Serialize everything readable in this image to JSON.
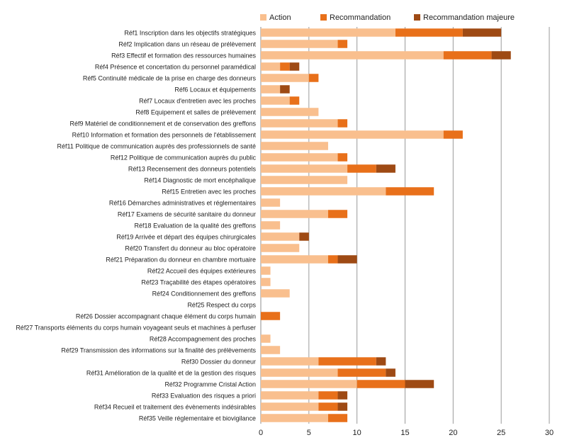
{
  "chart_data": {
    "type": "bar",
    "orientation": "horizontal",
    "stacked": true,
    "title": "",
    "xlabel": "",
    "ylabel": "",
    "xlim": [
      0,
      30
    ],
    "xticks": [
      0,
      5,
      10,
      15,
      20,
      25,
      30
    ],
    "grid": "vertical",
    "legend_position": "top",
    "categories": [
      "Réf1 Inscription dans les objectifs stratégiques",
      "Réf2 Implication dans un réseau de prélèvement",
      "Réf3 Effectif et formation des ressources humaines",
      "Réf4 Présence et concertation du personnel paramédical",
      "Réf5 Continuité médicale de la prise en charge des donneurs",
      "Réf6 Locaux et équipements",
      "Réf7 Locaux d'entretien avec les proches",
      "Réf8 Equipement et salles de prélèvement",
      "Réf9 Matériel de conditionnement et de conservation des greffons",
      "Réf10 Information et formation des personnels de l'établissement",
      "Réf11 Politique de communication auprès des professionnels de santé",
      "Réf12 Politique de communication auprès du public",
      "Réf13 Recensement des donneurs potentiels",
      "Réf14 Diagnostic de mort encéphalique",
      "Réf15 Entretien avec les proches",
      "Réf16 Démarches administratives et réglementaires",
      "Réf17 Examens de sécurité sanitaire du donneur",
      "Réf18 Evaluation de la qualité des greffons",
      "Réf19 Arrivée et départ des équipes chirurgicales",
      "Réf20 Transfert du donneur au bloc opératoire",
      "Réf21 Préparation du donneur en chambre mortuaire",
      "Réf22 Accueil des équipes extérieures",
      "Réf23 Traçabilité des étapes opératoires",
      "Réf24 Conditionnement des greffons",
      "Réf25 Respect du corps",
      "Réf26 Dossier accompagnant chaque élément du corps humain",
      "Réf27 Transports éléments du corps humain voyageant seuls et machines à perfuser",
      "Réf28 Accompagnement des proches",
      "Réf29 Transmission des informations sur la finalité des prélèvements",
      "Réf30 Dossier du donneur",
      "Réf31 Amélioration de la qualité et de la gestion des risques",
      "Réf32 Programme Cristal Action",
      "Réf33 Evaluation des risques a priori",
      "Réf34 Recueil et traitement des évènements indésirables",
      "Réf35 Veille réglementaire et biovigilance"
    ],
    "series": [
      {
        "name": "Action",
        "color": "#F9BF8E",
        "values": [
          14,
          8,
          19,
          2,
          5,
          2,
          3,
          6,
          8,
          19,
          7,
          8,
          9,
          9,
          13,
          2,
          7,
          2,
          4,
          4,
          7,
          1,
          1,
          3,
          0,
          0,
          0,
          1,
          2,
          6,
          8,
          10,
          6,
          6,
          7
        ]
      },
      {
        "name": "Recommandation",
        "color": "#E8701A",
        "values": [
          7,
          1,
          5,
          1,
          1,
          0,
          1,
          0,
          1,
          2,
          0,
          1,
          3,
          0,
          5,
          0,
          2,
          0,
          0,
          0,
          1,
          0,
          0,
          0,
          0,
          2,
          0,
          0,
          0,
          6,
          5,
          5,
          2,
          2,
          2
        ]
      },
      {
        "name": "Recommandation majeure",
        "color": "#9E4A14",
        "values": [
          4,
          0,
          2,
          1,
          0,
          1,
          0,
          0,
          0,
          0,
          0,
          0,
          2,
          0,
          0,
          0,
          0,
          0,
          1,
          0,
          2,
          0,
          0,
          0,
          0,
          0,
          0,
          0,
          0,
          1,
          1,
          3,
          1,
          1,
          0
        ]
      }
    ]
  }
}
